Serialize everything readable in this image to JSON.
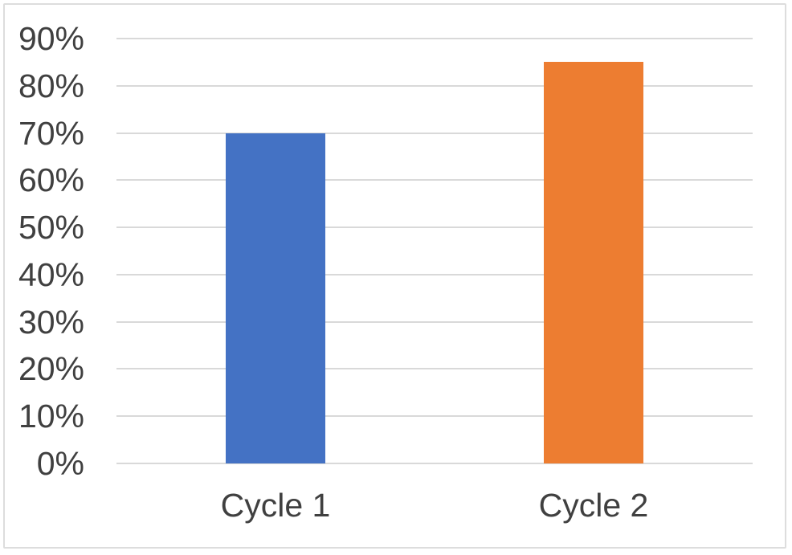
{
  "chart_data": {
    "type": "bar",
    "categories": [
      "Cycle 1",
      "Cycle 2"
    ],
    "values": [
      70,
      85
    ],
    "value_unit": "percent",
    "series_colors": [
      "#4472C4",
      "#ED7D31"
    ],
    "ylim": [
      0,
      90
    ],
    "ytick_step": 10,
    "ytick_labels": [
      "0%",
      "10%",
      "20%",
      "30%",
      "40%",
      "50%",
      "60%",
      "70%",
      "80%",
      "90%"
    ],
    "grid": "horizontal",
    "legend": "none"
  },
  "colors": {
    "bar_cycle_1": "#4472C4",
    "bar_cycle_2": "#ED7D31",
    "gridline": "#D9D9D9",
    "axis_line": "#D9D9D9",
    "tick_text": "#404040",
    "chart_border": "#DDDDDD",
    "background": "#FFFFFF"
  }
}
